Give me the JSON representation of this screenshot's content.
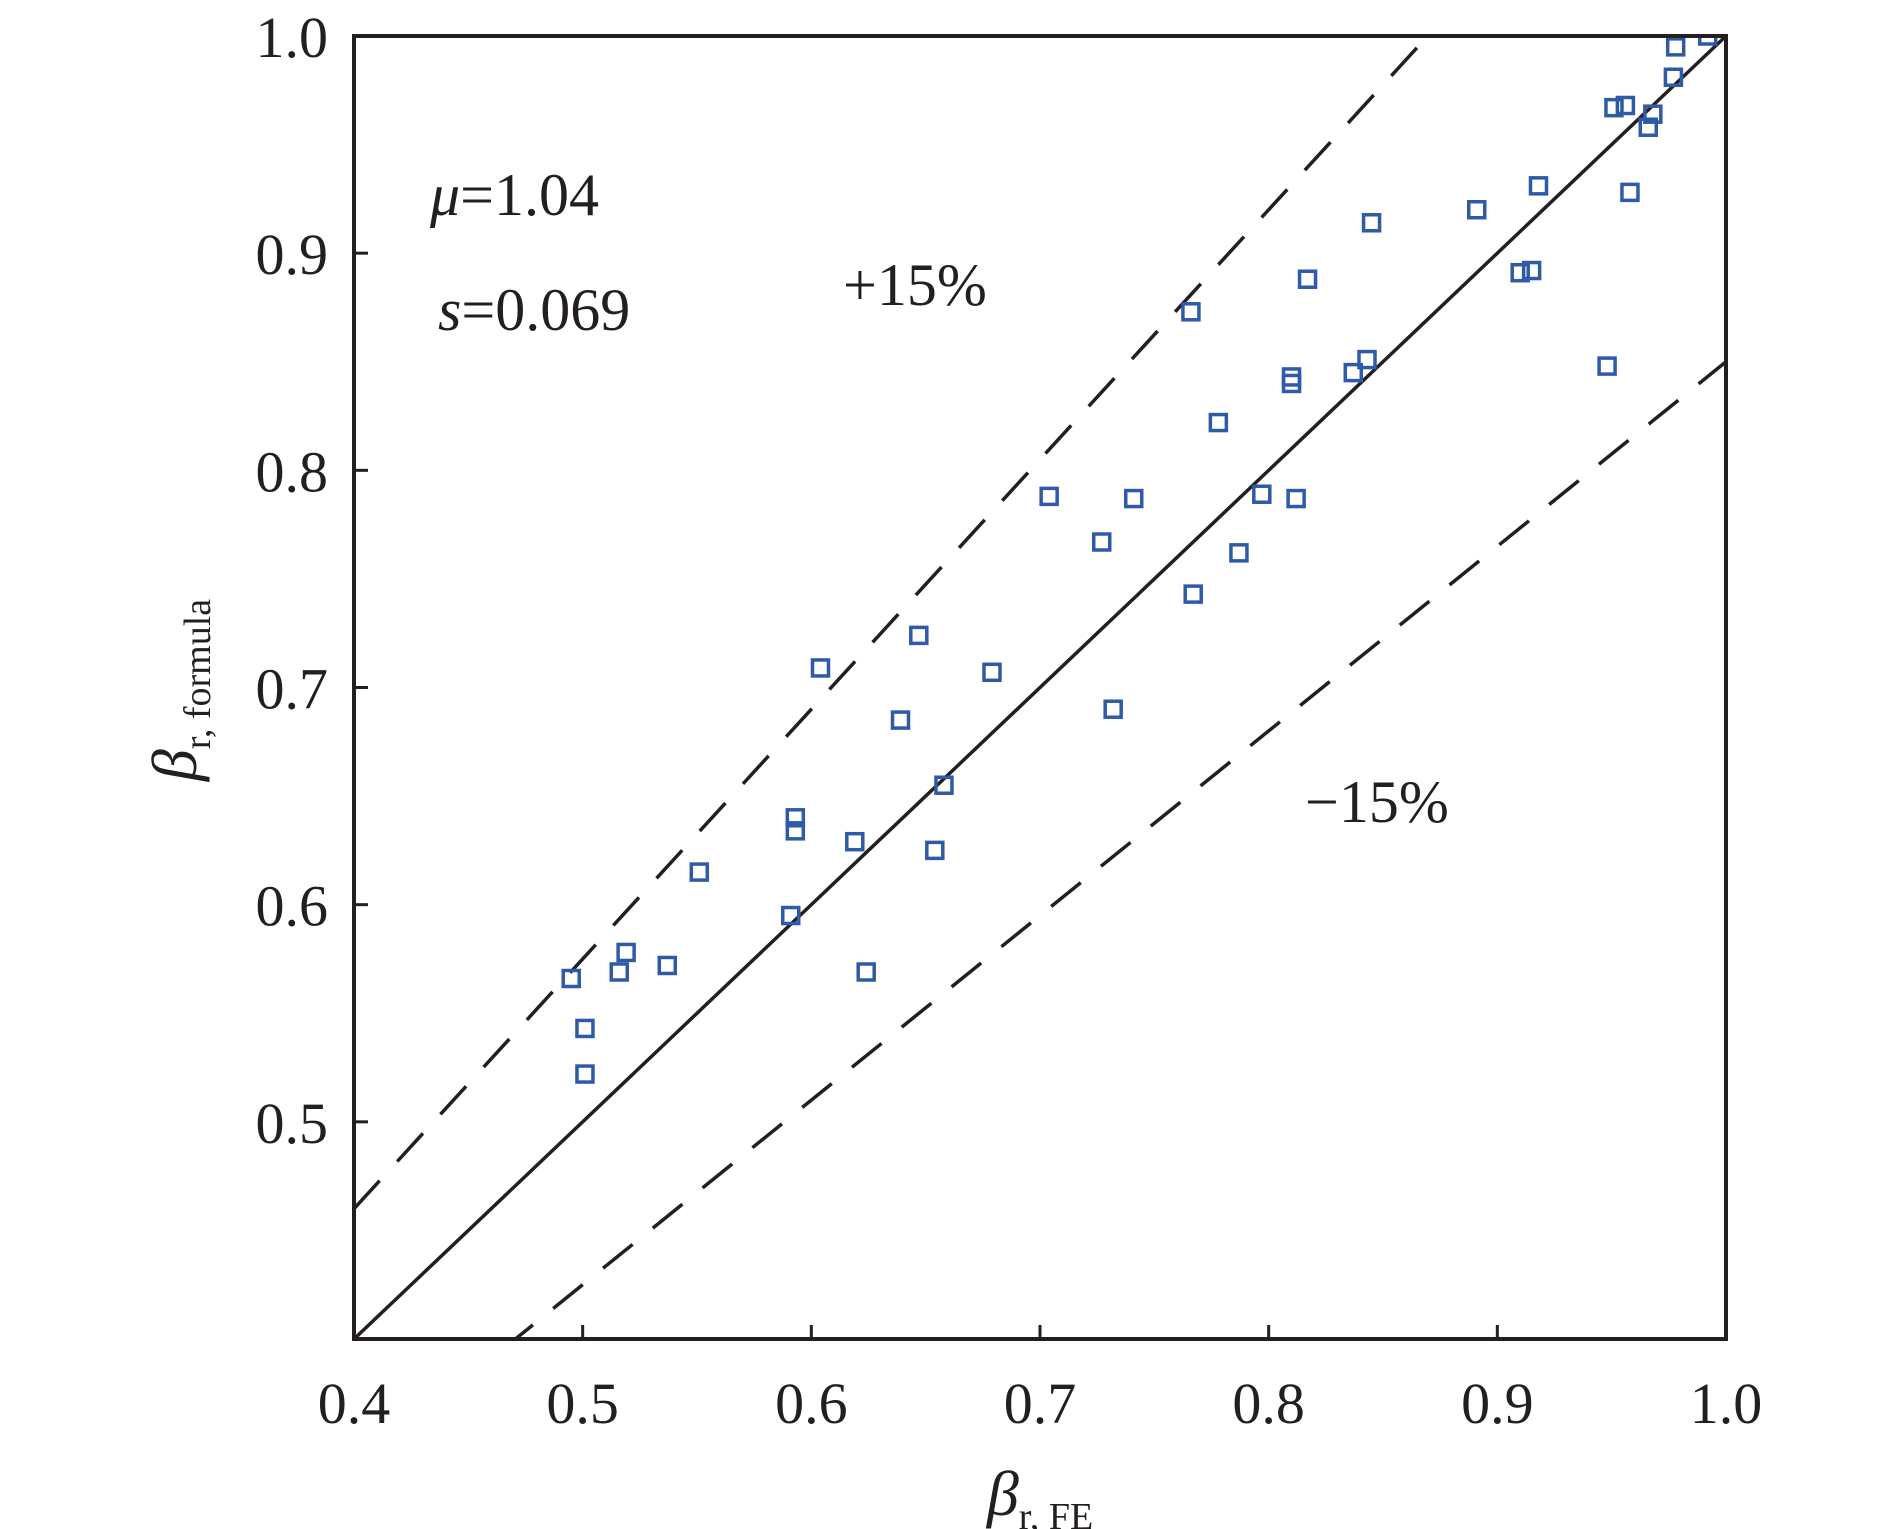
{
  "chart_data": {
    "type": "scatter",
    "title": "",
    "xlabel": {
      "symbol": "β",
      "subscript": "r, FE"
    },
    "ylabel": {
      "symbol": "β",
      "subscript": "r, formula"
    },
    "xlim": [
      0.4,
      1.0
    ],
    "ylim": [
      0.4,
      1.0
    ],
    "x_ticks": [
      "0.4",
      "0.5",
      "0.6",
      "0.7",
      "0.8",
      "0.9",
      "1.0"
    ],
    "y_ticks": [
      "0.5",
      "0.6",
      "0.7",
      "0.8",
      "0.9",
      "1.0"
    ],
    "grid": false,
    "legend": "none",
    "marker": "square-open",
    "marker_color": "#2f5aa8",
    "line_color": "#231f20",
    "reference_lines": [
      {
        "label": "",
        "slope": 1.0,
        "style": "solid"
      },
      {
        "label": "+15%",
        "slope": 1.15,
        "style": "dashed"
      },
      {
        "label": "−15%",
        "slope": 0.85,
        "style": "dashed"
      }
    ],
    "stats": {
      "mu_label": "μ",
      "mu_value": "=1.04",
      "s_label": "s",
      "s_value": "=0.069"
    },
    "points": [
      [
        0.495,
        0.566
      ],
      [
        0.501,
        0.543
      ],
      [
        0.501,
        0.522
      ],
      [
        0.516,
        0.569
      ],
      [
        0.519,
        0.578
      ],
      [
        0.537,
        0.572
      ],
      [
        0.551,
        0.615
      ],
      [
        0.591,
        0.595
      ],
      [
        0.593,
        0.64
      ],
      [
        0.593,
        0.634
      ],
      [
        0.604,
        0.709
      ],
      [
        0.619,
        0.629
      ],
      [
        0.624,
        0.569
      ],
      [
        0.639,
        0.685
      ],
      [
        0.647,
        0.724
      ],
      [
        0.654,
        0.625
      ],
      [
        0.658,
        0.655
      ],
      [
        0.679,
        0.707
      ],
      [
        0.704,
        0.788
      ],
      [
        0.727,
        0.767
      ],
      [
        0.732,
        0.69
      ],
      [
        0.741,
        0.787
      ],
      [
        0.766,
        0.873
      ],
      [
        0.767,
        0.743
      ],
      [
        0.778,
        0.822
      ],
      [
        0.787,
        0.762
      ],
      [
        0.797,
        0.789
      ],
      [
        0.81,
        0.843
      ],
      [
        0.81,
        0.84
      ],
      [
        0.812,
        0.787
      ],
      [
        0.817,
        0.888
      ],
      [
        0.837,
        0.845
      ],
      [
        0.843,
        0.851
      ],
      [
        0.845,
        0.914
      ],
      [
        0.891,
        0.92
      ],
      [
        0.91,
        0.891
      ],
      [
        0.915,
        0.892
      ],
      [
        0.918,
        0.931
      ],
      [
        0.948,
        0.848
      ],
      [
        0.951,
        0.967
      ],
      [
        0.956,
        0.968
      ],
      [
        0.958,
        0.928
      ],
      [
        0.966,
        0.958
      ],
      [
        0.968,
        0.964
      ],
      [
        0.977,
        0.981
      ],
      [
        0.978,
        0.995
      ],
      [
        0.992,
        1.0
      ]
    ]
  }
}
